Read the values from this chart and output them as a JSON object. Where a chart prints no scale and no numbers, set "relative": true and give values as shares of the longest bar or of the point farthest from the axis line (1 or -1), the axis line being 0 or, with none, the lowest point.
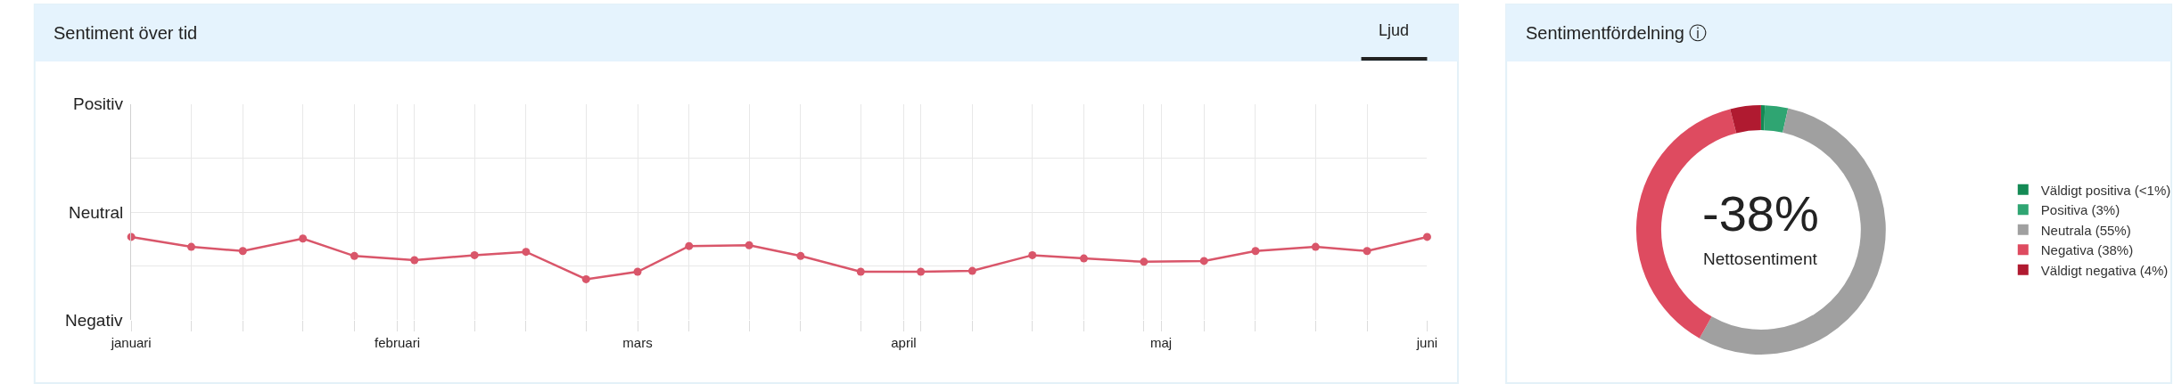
{
  "chart_data": [
    {
      "type": "line",
      "title": "Sentiment över tid",
      "annotations": [
        "Ljud",
        "Positiv",
        "Neutral",
        "Negativ"
      ],
      "x": [
        "--01-01",
        "--01-08",
        "--01-14",
        "--01-21",
        "--01-27",
        "--02-03",
        "--02-10",
        "--02-16",
        "--02-23",
        "--03-01",
        "--03-07",
        "--03-14",
        "--03-20",
        "--03-27",
        "--04-03",
        "--04-09",
        "--04-16",
        "--04-22",
        "--04-29",
        "--05-06",
        "--05-12",
        "--05-19",
        "--05-25",
        "--06-01"
      ],
      "series": [
        {
          "color": "#d9566a",
          "values": [
            1,
            0.88,
            0.83,
            0.98,
            0.77,
            0.72,
            0.78,
            0.82,
            0.49,
            0.58,
            0.89,
            0.9,
            0.77,
            0.58,
            0.58,
            0.59,
            0.78,
            0.74,
            0.7,
            0.71,
            0.83,
            0.88,
            0.83,
            1
          ]
        }
      ],
      "relative": true,
      "xlim": [
        "--01-01",
        "--06-01"
      ],
      "xticks": [
        {
          "value": "--01-01",
          "label": "januari"
        },
        {
          "value": "--02-01",
          "label": "februari"
        },
        {
          "value": "--03-01",
          "label": "mars"
        },
        {
          "value": "--04-01",
          "label": "april"
        },
        {
          "value": "--05-01",
          "label": "maj"
        },
        {
          "value": "--06-01",
          "label": "juni"
        },
        {
          "value": "--01-08",
          "label": null
        },
        {
          "value": "--01-14",
          "label": null
        },
        {
          "value": "--01-21",
          "label": null
        },
        {
          "value": "--01-27",
          "label": null
        },
        {
          "value": "--02-03",
          "label": null
        },
        {
          "value": "--02-10",
          "label": null
        },
        {
          "value": "--02-16",
          "label": null
        },
        {
          "value": "--02-23",
          "label": null
        },
        {
          "value": "--03-07",
          "label": null
        },
        {
          "value": "--03-14",
          "label": null
        },
        {
          "value": "--03-20",
          "label": null
        },
        {
          "value": "--03-27",
          "label": null
        },
        {
          "value": "--04-03",
          "label": null
        },
        {
          "value": "--04-09",
          "label": null
        },
        {
          "value": "--04-16",
          "label": null
        },
        {
          "value": "--04-22",
          "label": null
        },
        {
          "value": "--04-29",
          "label": null
        },
        {
          "value": "--05-06",
          "label": null
        },
        {
          "value": "--05-12",
          "label": null
        },
        {
          "value": "--05-19",
          "label": null
        },
        {
          "value": "--05-25",
          "label": null
        }
      ],
      "grid": true,
      "marker": "circle",
      "line_style": "solid"
    },
    {
      "type": "donut",
      "title": "Sentimentfördelning ⓘ",
      "categories": [
        "Väldigt positiva (<1%)",
        "Positiva (3%)",
        "Neutrala (55%)",
        "Negativa (38%)",
        "Väldigt negativa (4%)"
      ],
      "values": [
        0.5,
        3,
        55,
        38,
        4
      ],
      "colors": [
        "#148a55",
        "#2fa572",
        "#a0a0a0",
        "#de4b60",
        "#b01a30"
      ],
      "annotations": [
        "-38%",
        "Nettosentiment"
      ],
      "legend": "right"
    }
  ]
}
